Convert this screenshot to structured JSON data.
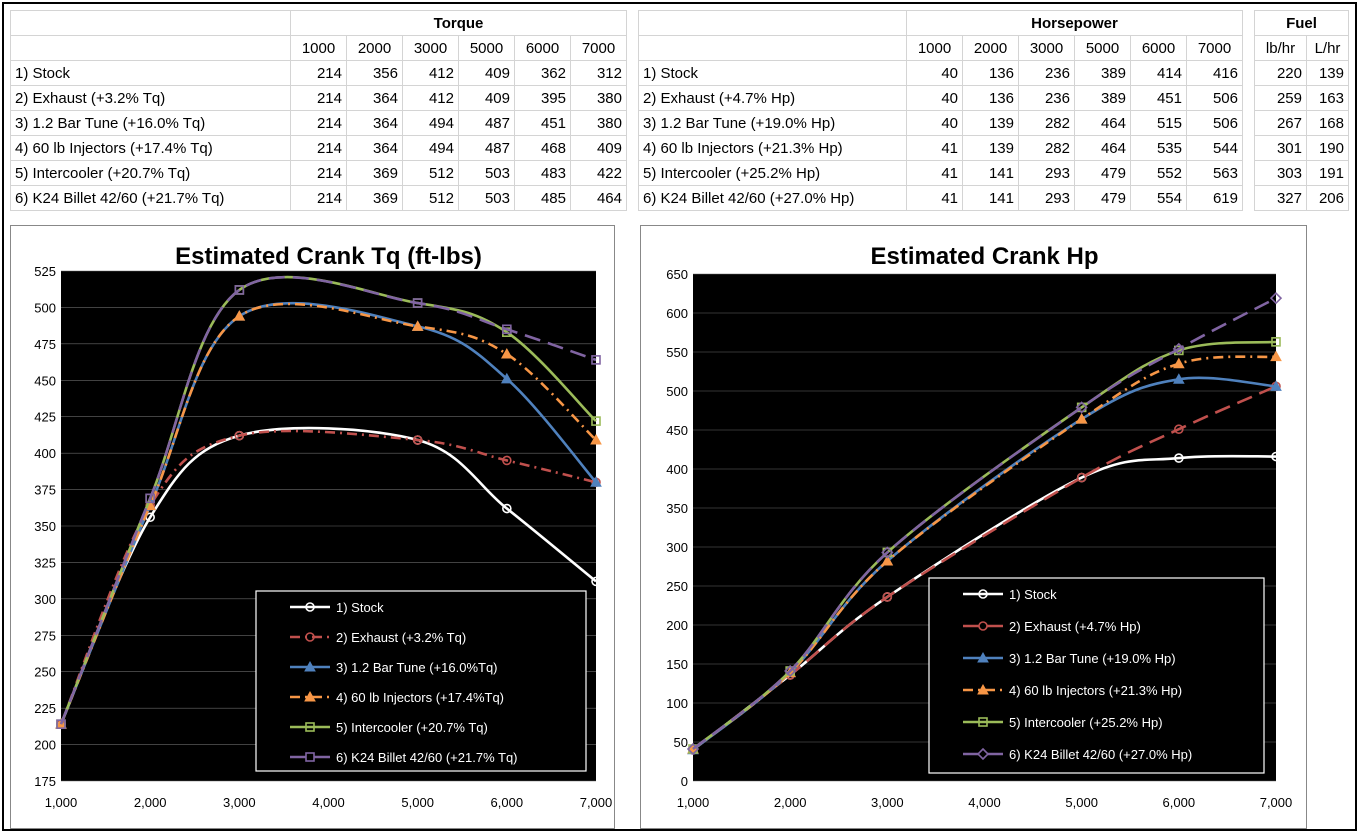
{
  "torque_table": {
    "title": "Torque",
    "columns": [
      "1000",
      "2000",
      "3000",
      "5000",
      "6000",
      "7000"
    ],
    "rows": [
      {
        "label": "1) Stock",
        "values": [
          "214",
          "356",
          "412",
          "409",
          "362",
          "312"
        ]
      },
      {
        "label": "2) Exhaust (+3.2% Tq)",
        "values": [
          "214",
          "364",
          "412",
          "409",
          "395",
          "380"
        ]
      },
      {
        "label": "3) 1.2 Bar Tune (+16.0% Tq)",
        "values": [
          "214",
          "364",
          "494",
          "487",
          "451",
          "380"
        ]
      },
      {
        "label": "4) 60 lb Injectors (+17.4% Tq)",
        "values": [
          "214",
          "364",
          "494",
          "487",
          "468",
          "409"
        ]
      },
      {
        "label": "5) Intercooler (+20.7% Tq)",
        "values": [
          "214",
          "369",
          "512",
          "503",
          "483",
          "422"
        ]
      },
      {
        "label": "6) K24 Billet 42/60 (+21.7% Tq)",
        "values": [
          "214",
          "369",
          "512",
          "503",
          "485",
          "464"
        ]
      }
    ]
  },
  "hp_table": {
    "title": "Horsepower",
    "columns": [
      "1000",
      "2000",
      "3000",
      "5000",
      "6000",
      "7000"
    ],
    "rows": [
      {
        "label": "1) Stock",
        "values": [
          "40",
          "136",
          "236",
          "389",
          "414",
          "416"
        ]
      },
      {
        "label": "2) Exhaust (+4.7% Hp)",
        "values": [
          "40",
          "136",
          "236",
          "389",
          "451",
          "506"
        ]
      },
      {
        "label": "3) 1.2 Bar Tune (+19.0% Hp)",
        "values": [
          "40",
          "139",
          "282",
          "464",
          "515",
          "506"
        ]
      },
      {
        "label": "4) 60 lb Injectors (+21.3% Hp)",
        "values": [
          "41",
          "139",
          "282",
          "464",
          "535",
          "544"
        ]
      },
      {
        "label": "5) Intercooler (+25.2% Hp)",
        "values": [
          "41",
          "141",
          "293",
          "479",
          "552",
          "563"
        ]
      },
      {
        "label": "6) K24 Billet 42/60 (+27.0% Hp)",
        "values": [
          "41",
          "141",
          "293",
          "479",
          "554",
          "619"
        ]
      }
    ]
  },
  "fuel_table": {
    "title": "Fuel",
    "columns": [
      "lb/hr",
      "L/hr"
    ],
    "rows": [
      [
        "220",
        "139"
      ],
      [
        "259",
        "163"
      ],
      [
        "267",
        "168"
      ],
      [
        "301",
        "190"
      ],
      [
        "303",
        "191"
      ],
      [
        "327",
        "206"
      ]
    ]
  },
  "chart_data": [
    {
      "type": "line",
      "title": "Estimated Crank Tq (ft-lbs)",
      "x": [
        1000,
        2000,
        3000,
        5000,
        6000,
        7000
      ],
      "x_tick_labels": [
        "1,000",
        "2,000",
        "3,000",
        "4,000",
        "5,000",
        "6,000",
        "7,000"
      ],
      "xlim": [
        1000,
        7000
      ],
      "ylim": [
        175,
        525
      ],
      "y_step": 25,
      "legend_position": "bottom-right",
      "series": [
        {
          "name": "1) Stock",
          "color": "#ffffff",
          "marker": "circle",
          "dash": "solid",
          "values": [
            214,
            356,
            412,
            409,
            362,
            312
          ]
        },
        {
          "name": "2) Exhaust (+3.2% Tq)",
          "color": "#c0504d",
          "marker": "circle",
          "dash": "dashdot",
          "values": [
            214,
            364,
            412,
            409,
            395,
            380
          ]
        },
        {
          "name": "3) 1.2 Bar Tune (+16.0%Tq)",
          "color": "#4f81bd",
          "marker": "triangle",
          "dash": "solid",
          "values": [
            214,
            364,
            494,
            487,
            451,
            380
          ]
        },
        {
          "name": "4) 60 lb Injectors (+17.4%Tq)",
          "color": "#f79646",
          "marker": "triangle",
          "dash": "dashdot",
          "values": [
            214,
            364,
            494,
            487,
            468,
            409
          ]
        },
        {
          "name": "5) Intercooler (+20.7% Tq)",
          "color": "#9bbb59",
          "marker": "square",
          "dash": "solid",
          "values": [
            214,
            369,
            512,
            503,
            483,
            422
          ]
        },
        {
          "name": "6) K24 Billet 42/60 (+21.7% Tq)",
          "color": "#8064a2",
          "marker": "square",
          "dash": "longdash",
          "values": [
            214,
            369,
            512,
            503,
            485,
            464
          ]
        }
      ]
    },
    {
      "type": "line",
      "title": "Estimated Crank Hp",
      "x": [
        1000,
        2000,
        3000,
        5000,
        6000,
        7000
      ],
      "x_tick_labels": [
        "1,000",
        "2,000",
        "3,000",
        "4,000",
        "5,000",
        "6,000",
        "7,000"
      ],
      "xlim": [
        1000,
        7000
      ],
      "ylim": [
        0,
        650
      ],
      "y_step": 50,
      "legend_position": "bottom-right",
      "series": [
        {
          "name": "1) Stock",
          "color": "#ffffff",
          "marker": "circle",
          "dash": "solid",
          "values": [
            40,
            136,
            236,
            389,
            414,
            416
          ]
        },
        {
          "name": "2) Exhaust (+4.7% Hp)",
          "color": "#c0504d",
          "marker": "circle",
          "dash": "longdash",
          "values": [
            40,
            136,
            236,
            389,
            451,
            506
          ]
        },
        {
          "name": "3) 1.2 Bar Tune (+19.0% Hp)",
          "color": "#4f81bd",
          "marker": "triangle",
          "dash": "solid",
          "values": [
            40,
            139,
            282,
            464,
            515,
            506
          ]
        },
        {
          "name": "4) 60 lb Injectors (+21.3% Hp)",
          "color": "#f79646",
          "marker": "triangle",
          "dash": "dashdot",
          "values": [
            41,
            139,
            282,
            464,
            535,
            544
          ]
        },
        {
          "name": "5) Intercooler (+25.2% Hp)",
          "color": "#9bbb59",
          "marker": "square",
          "dash": "solid",
          "values": [
            41,
            141,
            293,
            479,
            552,
            563
          ]
        },
        {
          "name": "6) K24 Billet 42/60 (+27.0% Hp)",
          "color": "#8064a2",
          "marker": "diamond",
          "dash": "longdash",
          "values": [
            41,
            141,
            293,
            479,
            554,
            619
          ]
        }
      ]
    }
  ]
}
